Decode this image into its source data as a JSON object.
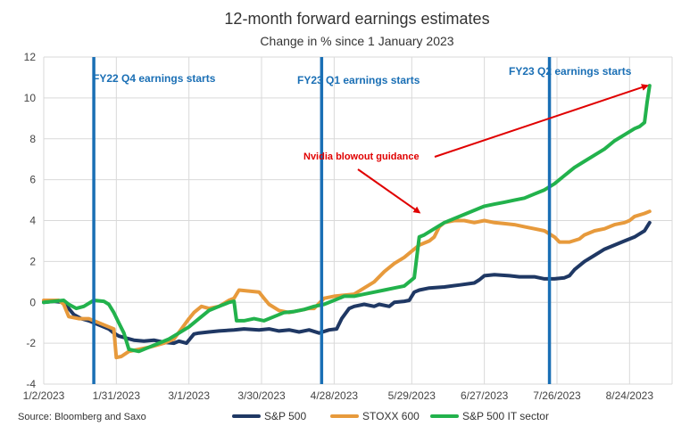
{
  "chart_data": {
    "type": "line",
    "title": "12-month forward earnings estimates",
    "subtitle": "Change in % since 1 January 2023",
    "source": "Source: Bloomberg and Saxo",
    "xlabel": "",
    "ylabel": "",
    "ylim": [
      -4,
      12
    ],
    "yticks": [
      -4,
      -2,
      0,
      2,
      4,
      6,
      8,
      10,
      12
    ],
    "xlim_days": [
      0,
      251
    ],
    "xticks": [
      {
        "day": 0,
        "label": "1/2/2023"
      },
      {
        "day": 29,
        "label": "1/31/2023"
      },
      {
        "day": 58,
        "label": "3/1/2023"
      },
      {
        "day": 87,
        "label": "3/30/2023"
      },
      {
        "day": 116,
        "label": "4/28/2023"
      },
      {
        "day": 147,
        "label": "5/29/2023"
      },
      {
        "day": 176,
        "label": "6/27/2023"
      },
      {
        "day": 205,
        "label": "7/26/2023"
      },
      {
        "day": 234,
        "label": "8/24/2023"
      }
    ],
    "x_extra_gridlines_days": [
      263
    ],
    "vlines": [
      {
        "day": 20,
        "label": "FY22 Q4 earnings starts",
        "color": "#1a6fb5"
      },
      {
        "day": 111,
        "label": "FY23 Q1 earnings starts",
        "color": "#1a6fb5"
      },
      {
        "day": 202,
        "label": "FY23 Q2 earnings starts",
        "color": "#1a6fb5"
      }
    ],
    "annotation": {
      "label": "Nvidia blowout guidance",
      "color": "#e00000",
      "arrow1_to": [
        150,
        4.4
      ],
      "arrow2_to": [
        241,
        10.6
      ]
    },
    "series": [
      {
        "name": "S&P 500",
        "color": "#1f3864",
        "points": [
          [
            0,
            0
          ],
          [
            4,
            0.05
          ],
          [
            8,
            0.0
          ],
          [
            10,
            -0.3
          ],
          [
            12,
            -0.6
          ],
          [
            15,
            -0.8
          ],
          [
            18,
            -0.9
          ],
          [
            22,
            -1.1
          ],
          [
            26,
            -1.3
          ],
          [
            28,
            -1.5
          ],
          [
            30,
            -1.65
          ],
          [
            33,
            -1.75
          ],
          [
            36,
            -1.85
          ],
          [
            40,
            -1.9
          ],
          [
            44,
            -1.85
          ],
          [
            48,
            -1.95
          ],
          [
            52,
            -2.0
          ],
          [
            54,
            -1.9
          ],
          [
            57,
            -2.0
          ],
          [
            60,
            -1.55
          ],
          [
            62,
            -1.5
          ],
          [
            66,
            -1.45
          ],
          [
            70,
            -1.4
          ],
          [
            76,
            -1.35
          ],
          [
            80,
            -1.3
          ],
          [
            86,
            -1.35
          ],
          [
            90,
            -1.3
          ],
          [
            94,
            -1.4
          ],
          [
            98,
            -1.35
          ],
          [
            102,
            -1.45
          ],
          [
            106,
            -1.35
          ],
          [
            110,
            -1.5
          ],
          [
            114,
            -1.35
          ],
          [
            117,
            -1.3
          ],
          [
            119,
            -0.8
          ],
          [
            122,
            -0.3
          ],
          [
            124,
            -0.2
          ],
          [
            128,
            -0.1
          ],
          [
            132,
            -0.2
          ],
          [
            134,
            -0.1
          ],
          [
            138,
            -0.2
          ],
          [
            140,
            0.0
          ],
          [
            144,
            0.05
          ],
          [
            146,
            0.1
          ],
          [
            148,
            0.5
          ],
          [
            150,
            0.6
          ],
          [
            154,
            0.7
          ],
          [
            160,
            0.75
          ],
          [
            166,
            0.85
          ],
          [
            172,
            0.95
          ],
          [
            174,
            1.1
          ],
          [
            176,
            1.3
          ],
          [
            180,
            1.35
          ],
          [
            186,
            1.3
          ],
          [
            190,
            1.25
          ],
          [
            196,
            1.25
          ],
          [
            200,
            1.15
          ],
          [
            204,
            1.15
          ],
          [
            208,
            1.2
          ],
          [
            210,
            1.3
          ],
          [
            212,
            1.6
          ],
          [
            216,
            2.0
          ],
          [
            220,
            2.3
          ],
          [
            224,
            2.6
          ],
          [
            228,
            2.8
          ],
          [
            232,
            3.0
          ],
          [
            236,
            3.2
          ],
          [
            238,
            3.35
          ],
          [
            240,
            3.5
          ],
          [
            242,
            3.9
          ]
        ]
      },
      {
        "name": "STOXX 600",
        "color": "#e79a3c",
        "points": [
          [
            0,
            0.1
          ],
          [
            3,
            0.1
          ],
          [
            6,
            0.1
          ],
          [
            8,
            -0.1
          ],
          [
            10,
            -0.7
          ],
          [
            14,
            -0.8
          ],
          [
            18,
            -0.8
          ],
          [
            22,
            -1.0
          ],
          [
            26,
            -1.2
          ],
          [
            28,
            -1.3
          ],
          [
            29,
            -2.7
          ],
          [
            31,
            -2.65
          ],
          [
            34,
            -2.4
          ],
          [
            38,
            -2.3
          ],
          [
            42,
            -2.2
          ],
          [
            45,
            -2.1
          ],
          [
            48,
            -2.0
          ],
          [
            52,
            -1.8
          ],
          [
            55,
            -1.3
          ],
          [
            58,
            -0.8
          ],
          [
            60,
            -0.5
          ],
          [
            63,
            -0.2
          ],
          [
            66,
            -0.3
          ],
          [
            70,
            -0.2
          ],
          [
            74,
            0.1
          ],
          [
            76,
            0.2
          ],
          [
            78,
            0.6
          ],
          [
            82,
            0.55
          ],
          [
            86,
            0.5
          ],
          [
            88,
            0.2
          ],
          [
            90,
            -0.1
          ],
          [
            94,
            -0.4
          ],
          [
            98,
            -0.5
          ],
          [
            102,
            -0.4
          ],
          [
            106,
            -0.3
          ],
          [
            108,
            -0.3
          ],
          [
            112,
            0.2
          ],
          [
            116,
            0.3
          ],
          [
            120,
            0.35
          ],
          [
            124,
            0.4
          ],
          [
            128,
            0.7
          ],
          [
            132,
            1.0
          ],
          [
            136,
            1.5
          ],
          [
            140,
            1.9
          ],
          [
            144,
            2.2
          ],
          [
            148,
            2.6
          ],
          [
            150,
            2.8
          ],
          [
            154,
            3.0
          ],
          [
            156,
            3.2
          ],
          [
            158,
            3.7
          ],
          [
            160,
            3.9
          ],
          [
            164,
            4.0
          ],
          [
            168,
            4.0
          ],
          [
            172,
            3.9
          ],
          [
            176,
            4.0
          ],
          [
            180,
            3.9
          ],
          [
            184,
            3.85
          ],
          [
            188,
            3.8
          ],
          [
            192,
            3.7
          ],
          [
            196,
            3.6
          ],
          [
            200,
            3.5
          ],
          [
            204,
            3.2
          ],
          [
            206,
            2.95
          ],
          [
            210,
            2.95
          ],
          [
            214,
            3.1
          ],
          [
            216,
            3.3
          ],
          [
            220,
            3.5
          ],
          [
            224,
            3.6
          ],
          [
            228,
            3.8
          ],
          [
            232,
            3.9
          ],
          [
            234,
            4.0
          ],
          [
            236,
            4.2
          ],
          [
            240,
            4.35
          ],
          [
            242,
            4.45
          ]
        ]
      },
      {
        "name": "S&P 500 IT sector",
        "color": "#22b24c",
        "points": [
          [
            0,
            0.0
          ],
          [
            4,
            0.05
          ],
          [
            8,
            0.1
          ],
          [
            10,
            -0.1
          ],
          [
            13,
            -0.3
          ],
          [
            16,
            -0.2
          ],
          [
            20,
            0.1
          ],
          [
            24,
            0.05
          ],
          [
            26,
            -0.1
          ],
          [
            28,
            -0.5
          ],
          [
            30,
            -1.0
          ],
          [
            32,
            -1.5
          ],
          [
            34,
            -2.3
          ],
          [
            38,
            -2.4
          ],
          [
            42,
            -2.2
          ],
          [
            46,
            -2.0
          ],
          [
            50,
            -1.8
          ],
          [
            54,
            -1.5
          ],
          [
            58,
            -1.2
          ],
          [
            62,
            -0.8
          ],
          [
            66,
            -0.4
          ],
          [
            70,
            -0.2
          ],
          [
            74,
            0.0
          ],
          [
            76,
            0.05
          ],
          [
            77,
            -0.9
          ],
          [
            80,
            -0.9
          ],
          [
            84,
            -0.8
          ],
          [
            88,
            -0.9
          ],
          [
            92,
            -0.7
          ],
          [
            96,
            -0.5
          ],
          [
            100,
            -0.45
          ],
          [
            104,
            -0.35
          ],
          [
            108,
            -0.2
          ],
          [
            112,
            -0.1
          ],
          [
            116,
            0.1
          ],
          [
            118,
            0.2
          ],
          [
            120,
            0.3
          ],
          [
            124,
            0.3
          ],
          [
            128,
            0.4
          ],
          [
            132,
            0.5
          ],
          [
            136,
            0.6
          ],
          [
            140,
            0.7
          ],
          [
            144,
            0.8
          ],
          [
            146,
            1.0
          ],
          [
            148,
            1.2
          ],
          [
            150,
            3.2
          ],
          [
            152,
            3.3
          ],
          [
            156,
            3.6
          ],
          [
            160,
            3.9
          ],
          [
            164,
            4.1
          ],
          [
            168,
            4.3
          ],
          [
            172,
            4.5
          ],
          [
            176,
            4.7
          ],
          [
            180,
            4.8
          ],
          [
            184,
            4.9
          ],
          [
            188,
            5.0
          ],
          [
            192,
            5.1
          ],
          [
            196,
            5.3
          ],
          [
            200,
            5.5
          ],
          [
            204,
            5.8
          ],
          [
            208,
            6.2
          ],
          [
            212,
            6.6
          ],
          [
            216,
            6.9
          ],
          [
            220,
            7.2
          ],
          [
            224,
            7.5
          ],
          [
            228,
            7.9
          ],
          [
            232,
            8.2
          ],
          [
            236,
            8.5
          ],
          [
            238,
            8.6
          ],
          [
            240,
            8.8
          ],
          [
            241,
            9.8
          ],
          [
            242,
            10.6
          ]
        ]
      }
    ]
  }
}
